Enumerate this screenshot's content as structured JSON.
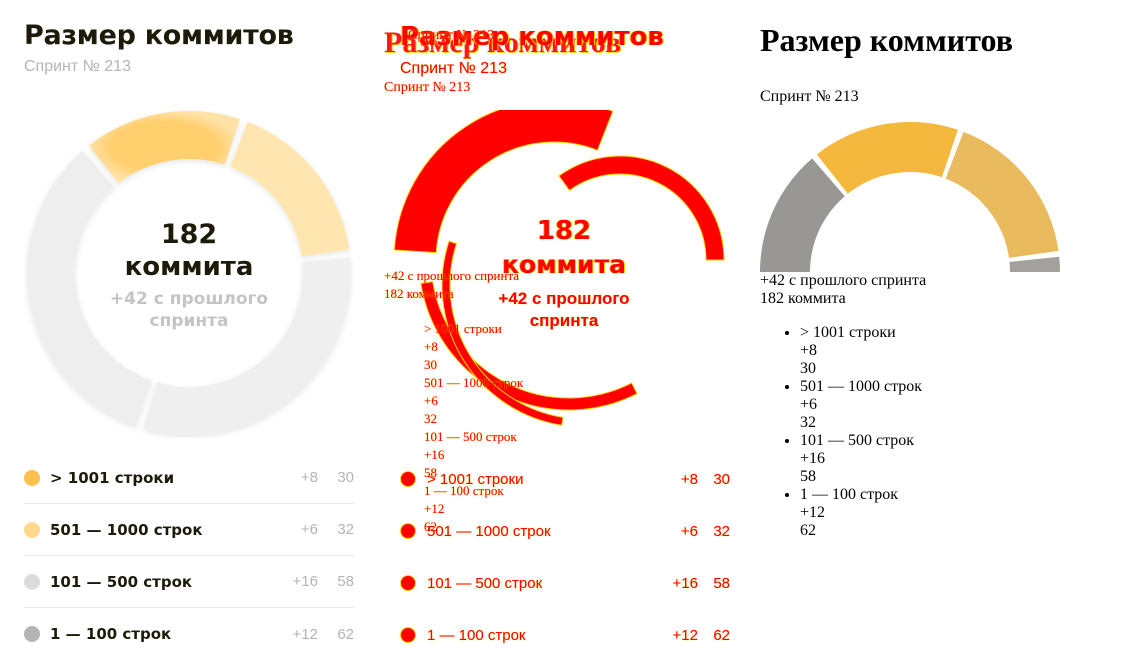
{
  "page": {
    "title": "Размер коммитов",
    "subtitle": "Спринт № 213"
  },
  "summary": {
    "total": "182",
    "unit": "коммита",
    "delta": "+42 с прошлого спринта",
    "total_line": "182 коммита"
  },
  "legend": [
    {
      "label": "> 1001 строки",
      "delta": "+8",
      "count": "30",
      "color": "#ffc14d"
    },
    {
      "label": "501 — 1000 строк",
      "delta": "+6",
      "count": "32",
      "color": "#ffd88e"
    },
    {
      "label": "101 — 500 строк",
      "delta": "+16",
      "count": "58",
      "color": "#dcdcdc"
    },
    {
      "label": "1 — 100 строк",
      "delta": "+12",
      "count": "62",
      "color": "#b5b5b5"
    }
  ],
  "chart_data": {
    "type": "pie",
    "donut": true,
    "categories": [
      "> 1001 строки",
      "501 — 1000 строк",
      "101 — 500 строк",
      "1 — 100 строк"
    ],
    "values": [
      30,
      32,
      58,
      62
    ],
    "deltas": [
      8,
      6,
      16,
      12
    ],
    "total": 182
  },
  "colors": {
    "accent_yellow": "#ffc14d",
    "accent_light_yellow": "#ffd88e",
    "grey_light": "#e9e9e9",
    "grey_mid": "#b5b5b5",
    "text_dark": "#1e1a0a",
    "text_muted": "#b4b4b4",
    "diff_red": "#ff0000",
    "diff_yellow": "#ffd800"
  }
}
